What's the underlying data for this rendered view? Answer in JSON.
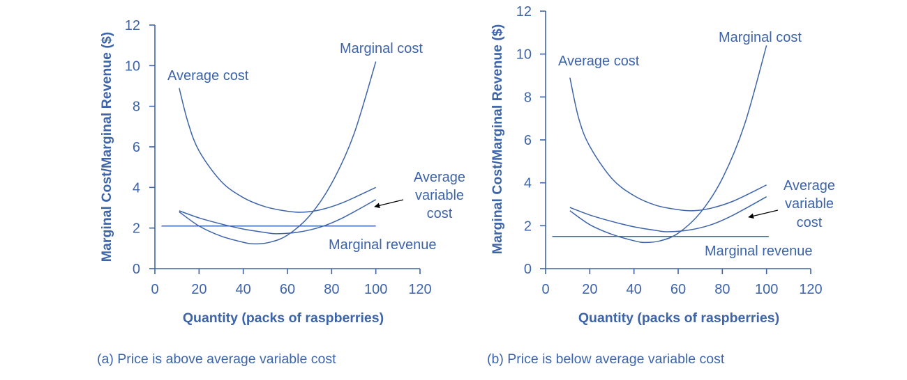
{
  "colors": {
    "primary": "#3d64a8",
    "arrow": "#000000"
  },
  "chart_data": [
    {
      "type": "line",
      "caption": "(a) Price is above average variable cost",
      "xlabel": "Quantity (packs of raspberries)",
      "ylabel": "Marginal Cost/Marginal Revenue ($)",
      "xlim": [
        0,
        120
      ],
      "ylim": [
        0,
        12
      ],
      "xticks": [
        "0",
        "20",
        "40",
        "60",
        "80",
        "100",
        "120"
      ],
      "yticks": [
        "0",
        "2",
        "4",
        "6",
        "8",
        "10",
        "12"
      ],
      "grid": false,
      "series": [
        {
          "name": "Average cost",
          "points": [
            [
              11,
              8.9
            ],
            [
              15,
              7.2
            ],
            [
              20,
              5.8
            ],
            [
              30,
              4.3
            ],
            [
              40,
              3.5
            ],
            [
              50,
              3.05
            ],
            [
              60,
              2.83
            ],
            [
              67,
              2.78
            ],
            [
              75,
              2.9
            ],
            [
              85,
              3.25
            ],
            [
              100,
              4.0
            ]
          ]
        },
        {
          "name": "Average variable cost",
          "points": [
            [
              11,
              2.85
            ],
            [
              20,
              2.5
            ],
            [
              30,
              2.2
            ],
            [
              40,
              1.95
            ],
            [
              50,
              1.78
            ],
            [
              55,
              1.72
            ],
            [
              65,
              1.8
            ],
            [
              75,
              2.05
            ],
            [
              85,
              2.5
            ],
            [
              100,
              3.4
            ]
          ]
        },
        {
          "name": "Marginal cost",
          "points": [
            [
              11,
              2.8
            ],
            [
              20,
              2.1
            ],
            [
              30,
              1.6
            ],
            [
              40,
              1.3
            ],
            [
              45,
              1.22
            ],
            [
              52,
              1.3
            ],
            [
              60,
              1.65
            ],
            [
              70,
              2.6
            ],
            [
              80,
              4.2
            ],
            [
              90,
              6.6
            ],
            [
              100,
              10.2
            ]
          ]
        },
        {
          "name": "Marginal revenue",
          "points": [
            [
              3,
              2.1
            ],
            [
              100,
              2.1
            ]
          ]
        }
      ],
      "labels": {
        "mc": "Marginal cost",
        "ac": "Average cost",
        "avc": [
          "Average",
          "variable",
          "cost"
        ],
        "mr": "Marginal revenue"
      }
    },
    {
      "type": "line",
      "caption": "(b) Price is below average variable cost",
      "xlabel": "Quantity (packs of raspberries)",
      "ylabel": "Marginal Cost/Marginal Revenue ($)",
      "xlim": [
        0,
        120
      ],
      "ylim": [
        0,
        12
      ],
      "xticks": [
        "0",
        "20",
        "40",
        "60",
        "80",
        "100",
        "120"
      ],
      "yticks": [
        "0",
        "2",
        "4",
        "6",
        "8",
        "10",
        "12"
      ],
      "grid": false,
      "series": [
        {
          "name": "Average cost",
          "points": [
            [
              11,
              8.9
            ],
            [
              15,
              7.0
            ],
            [
              20,
              5.7
            ],
            [
              30,
              4.2
            ],
            [
              40,
              3.4
            ],
            [
              50,
              2.95
            ],
            [
              60,
              2.75
            ],
            [
              67,
              2.7
            ],
            [
              75,
              2.82
            ],
            [
              85,
              3.15
            ],
            [
              100,
              3.9
            ]
          ]
        },
        {
          "name": "Average variable cost",
          "points": [
            [
              11,
              2.85
            ],
            [
              20,
              2.5
            ],
            [
              30,
              2.2
            ],
            [
              40,
              1.95
            ],
            [
              50,
              1.78
            ],
            [
              55,
              1.72
            ],
            [
              65,
              1.8
            ],
            [
              75,
              2.05
            ],
            [
              85,
              2.5
            ],
            [
              100,
              3.35
            ]
          ]
        },
        {
          "name": "Marginal cost",
          "points": [
            [
              11,
              2.7
            ],
            [
              20,
              2.05
            ],
            [
              30,
              1.6
            ],
            [
              40,
              1.3
            ],
            [
              45,
              1.22
            ],
            [
              52,
              1.3
            ],
            [
              60,
              1.65
            ],
            [
              70,
              2.6
            ],
            [
              80,
              4.2
            ],
            [
              90,
              6.7
            ],
            [
              100,
              10.4
            ]
          ]
        },
        {
          "name": "Marginal revenue",
          "points": [
            [
              3,
              1.5
            ],
            [
              101,
              1.5
            ]
          ]
        }
      ],
      "labels": {
        "mc": "Marginal cost",
        "ac": "Average cost",
        "avc": [
          "Average",
          "variable",
          "cost"
        ],
        "mr": "Marginal revenue"
      }
    }
  ]
}
